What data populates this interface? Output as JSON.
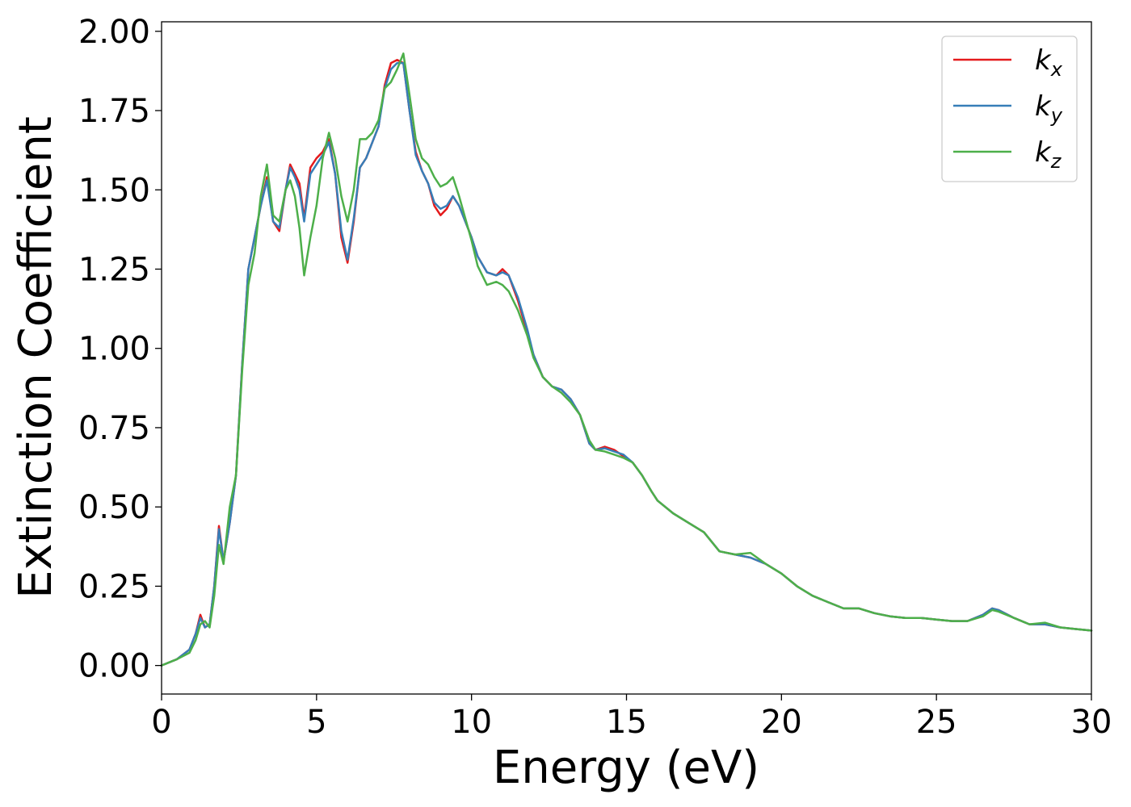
{
  "chart_data": {
    "type": "line",
    "title": "",
    "xlabel": "Energy (eV)",
    "ylabel": "Extinction Coefficient",
    "xlim": [
      0,
      30
    ],
    "ylim": [
      -0.09,
      2.03
    ],
    "xticks": [
      0,
      5,
      10,
      15,
      20,
      25,
      30
    ],
    "xtick_labels": [
      "0",
      "5",
      "10",
      "15",
      "20",
      "25",
      "30"
    ],
    "yticks": [
      0,
      0.25,
      0.5,
      0.75,
      1.0,
      1.25,
      1.5,
      1.75,
      2.0
    ],
    "ytick_labels": [
      "0.00",
      "0.25",
      "0.50",
      "0.75",
      "1.00",
      "1.25",
      "1.50",
      "1.75",
      "2.00"
    ],
    "grid": false,
    "legend_position": "top-right",
    "series": [
      {
        "name": "k_x",
        "label_main": "k",
        "label_sub": "x",
        "color": "#e41a1c",
        "x": [
          0,
          0.5,
          0.9,
          1.1,
          1.25,
          1.4,
          1.55,
          1.7,
          1.85,
          2.0,
          2.2,
          2.4,
          2.6,
          2.8,
          3.0,
          3.2,
          3.4,
          3.6,
          3.8,
          4.0,
          4.15,
          4.3,
          4.45,
          4.6,
          4.8,
          5.0,
          5.2,
          5.4,
          5.6,
          5.8,
          6.0,
          6.2,
          6.4,
          6.6,
          6.8,
          7.0,
          7.2,
          7.4,
          7.6,
          7.8,
          8.0,
          8.2,
          8.4,
          8.6,
          8.8,
          9.0,
          9.2,
          9.4,
          9.6,
          9.8,
          10.0,
          10.2,
          10.5,
          10.8,
          11.0,
          11.2,
          11.5,
          11.8,
          12.0,
          12.3,
          12.6,
          12.9,
          13.2,
          13.5,
          13.8,
          14.0,
          14.3,
          14.6,
          14.9,
          15.2,
          15.5,
          15.8,
          16.0,
          16.5,
          17.0,
          17.5,
          18.0,
          18.5,
          19.0,
          19.5,
          20.0,
          20.5,
          21.0,
          21.5,
          22.0,
          22.5,
          23.0,
          23.5,
          24.0,
          24.5,
          25.0,
          25.5,
          26.0,
          26.5,
          26.8,
          27.0,
          27.5,
          28.0,
          28.5,
          29.0,
          29.5,
          30.0
        ],
        "y": [
          0.0,
          0.02,
          0.05,
          0.1,
          0.16,
          0.12,
          0.13,
          0.25,
          0.44,
          0.33,
          0.45,
          0.6,
          0.95,
          1.25,
          1.35,
          1.45,
          1.54,
          1.4,
          1.37,
          1.5,
          1.58,
          1.55,
          1.52,
          1.41,
          1.57,
          1.6,
          1.62,
          1.66,
          1.55,
          1.35,
          1.27,
          1.4,
          1.57,
          1.6,
          1.65,
          1.7,
          1.83,
          1.9,
          1.91,
          1.9,
          1.75,
          1.62,
          1.56,
          1.52,
          1.45,
          1.42,
          1.44,
          1.48,
          1.45,
          1.4,
          1.35,
          1.29,
          1.24,
          1.23,
          1.25,
          1.23,
          1.15,
          1.05,
          0.98,
          0.91,
          0.88,
          0.87,
          0.84,
          0.79,
          0.7,
          0.68,
          0.69,
          0.68,
          0.66,
          0.64,
          0.6,
          0.55,
          0.52,
          0.48,
          0.45,
          0.42,
          0.36,
          0.35,
          0.34,
          0.32,
          0.29,
          0.25,
          0.22,
          0.2,
          0.18,
          0.18,
          0.165,
          0.155,
          0.15,
          0.15,
          0.145,
          0.14,
          0.14,
          0.16,
          0.18,
          0.175,
          0.15,
          0.13,
          0.13,
          0.12,
          0.115,
          0.11
        ]
      },
      {
        "name": "k_y",
        "label_main": "k",
        "label_sub": "y",
        "color": "#377eb8",
        "x": [
          0,
          0.5,
          0.9,
          1.1,
          1.25,
          1.4,
          1.55,
          1.7,
          1.85,
          2.0,
          2.2,
          2.4,
          2.6,
          2.8,
          3.0,
          3.2,
          3.4,
          3.6,
          3.8,
          4.0,
          4.15,
          4.3,
          4.45,
          4.6,
          4.8,
          5.0,
          5.2,
          5.4,
          5.6,
          5.8,
          6.0,
          6.2,
          6.4,
          6.6,
          6.8,
          7.0,
          7.2,
          7.4,
          7.6,
          7.8,
          8.0,
          8.2,
          8.4,
          8.6,
          8.8,
          9.0,
          9.2,
          9.4,
          9.6,
          9.8,
          10.0,
          10.2,
          10.5,
          10.8,
          11.0,
          11.2,
          11.5,
          11.8,
          12.0,
          12.3,
          12.6,
          12.9,
          13.2,
          13.5,
          13.8,
          14.0,
          14.3,
          14.6,
          14.9,
          15.2,
          15.5,
          15.8,
          16.0,
          16.5,
          17.0,
          17.5,
          18.0,
          18.5,
          19.0,
          19.5,
          20.0,
          20.5,
          21.0,
          21.5,
          22.0,
          22.5,
          23.0,
          23.5,
          24.0,
          24.5,
          25.0,
          25.5,
          26.0,
          26.5,
          26.8,
          27.0,
          27.5,
          28.0,
          28.5,
          29.0,
          29.5,
          30.0
        ],
        "y": [
          0.0,
          0.02,
          0.05,
          0.1,
          0.15,
          0.12,
          0.13,
          0.25,
          0.43,
          0.33,
          0.45,
          0.6,
          0.95,
          1.25,
          1.35,
          1.45,
          1.53,
          1.4,
          1.38,
          1.5,
          1.57,
          1.54,
          1.5,
          1.4,
          1.55,
          1.58,
          1.61,
          1.65,
          1.55,
          1.37,
          1.28,
          1.41,
          1.57,
          1.6,
          1.65,
          1.7,
          1.82,
          1.88,
          1.9,
          1.9,
          1.75,
          1.61,
          1.56,
          1.52,
          1.46,
          1.44,
          1.45,
          1.48,
          1.45,
          1.4,
          1.35,
          1.29,
          1.24,
          1.23,
          1.24,
          1.23,
          1.16,
          1.06,
          0.98,
          0.91,
          0.88,
          0.87,
          0.84,
          0.79,
          0.7,
          0.68,
          0.685,
          0.675,
          0.665,
          0.64,
          0.6,
          0.55,
          0.52,
          0.48,
          0.45,
          0.42,
          0.36,
          0.35,
          0.34,
          0.32,
          0.29,
          0.25,
          0.22,
          0.2,
          0.18,
          0.18,
          0.165,
          0.155,
          0.15,
          0.15,
          0.145,
          0.14,
          0.14,
          0.16,
          0.18,
          0.175,
          0.15,
          0.13,
          0.13,
          0.12,
          0.115,
          0.11
        ]
      },
      {
        "name": "k_z",
        "label_main": "k",
        "label_sub": "z",
        "color": "#4daf4a",
        "x": [
          0,
          0.5,
          0.9,
          1.1,
          1.25,
          1.4,
          1.55,
          1.7,
          1.85,
          2.0,
          2.2,
          2.4,
          2.6,
          2.8,
          3.0,
          3.2,
          3.4,
          3.6,
          3.8,
          4.0,
          4.15,
          4.3,
          4.45,
          4.6,
          4.8,
          5.0,
          5.2,
          5.4,
          5.6,
          5.8,
          6.0,
          6.2,
          6.4,
          6.6,
          6.8,
          7.0,
          7.2,
          7.4,
          7.6,
          7.8,
          8.0,
          8.2,
          8.4,
          8.6,
          8.8,
          9.0,
          9.2,
          9.4,
          9.6,
          9.8,
          10.0,
          10.2,
          10.5,
          10.8,
          11.0,
          11.2,
          11.5,
          11.8,
          12.0,
          12.3,
          12.6,
          12.9,
          13.2,
          13.5,
          13.8,
          14.0,
          14.3,
          14.6,
          14.9,
          15.2,
          15.5,
          15.8,
          16.0,
          16.5,
          17.0,
          17.5,
          18.0,
          18.5,
          19.0,
          19.5,
          20.0,
          20.5,
          21.0,
          21.5,
          22.0,
          22.5,
          23.0,
          23.5,
          24.0,
          24.5,
          25.0,
          25.5,
          26.0,
          26.5,
          26.8,
          27.0,
          27.5,
          28.0,
          28.5,
          29.0,
          29.5,
          30.0
        ],
        "y": [
          0.0,
          0.02,
          0.04,
          0.08,
          0.13,
          0.14,
          0.12,
          0.22,
          0.38,
          0.32,
          0.5,
          0.6,
          0.93,
          1.2,
          1.3,
          1.48,
          1.58,
          1.42,
          1.4,
          1.5,
          1.53,
          1.48,
          1.38,
          1.23,
          1.35,
          1.45,
          1.6,
          1.68,
          1.6,
          1.48,
          1.4,
          1.5,
          1.66,
          1.66,
          1.68,
          1.72,
          1.82,
          1.84,
          1.88,
          1.93,
          1.8,
          1.66,
          1.6,
          1.58,
          1.54,
          1.51,
          1.52,
          1.54,
          1.48,
          1.41,
          1.34,
          1.26,
          1.2,
          1.21,
          1.2,
          1.18,
          1.12,
          1.04,
          0.97,
          0.91,
          0.88,
          0.86,
          0.83,
          0.79,
          0.71,
          0.68,
          0.675,
          0.665,
          0.655,
          0.64,
          0.6,
          0.55,
          0.52,
          0.48,
          0.45,
          0.42,
          0.36,
          0.35,
          0.355,
          0.32,
          0.29,
          0.25,
          0.22,
          0.2,
          0.18,
          0.18,
          0.165,
          0.155,
          0.15,
          0.15,
          0.145,
          0.14,
          0.14,
          0.155,
          0.175,
          0.17,
          0.15,
          0.13,
          0.135,
          0.12,
          0.115,
          0.11
        ]
      }
    ]
  }
}
